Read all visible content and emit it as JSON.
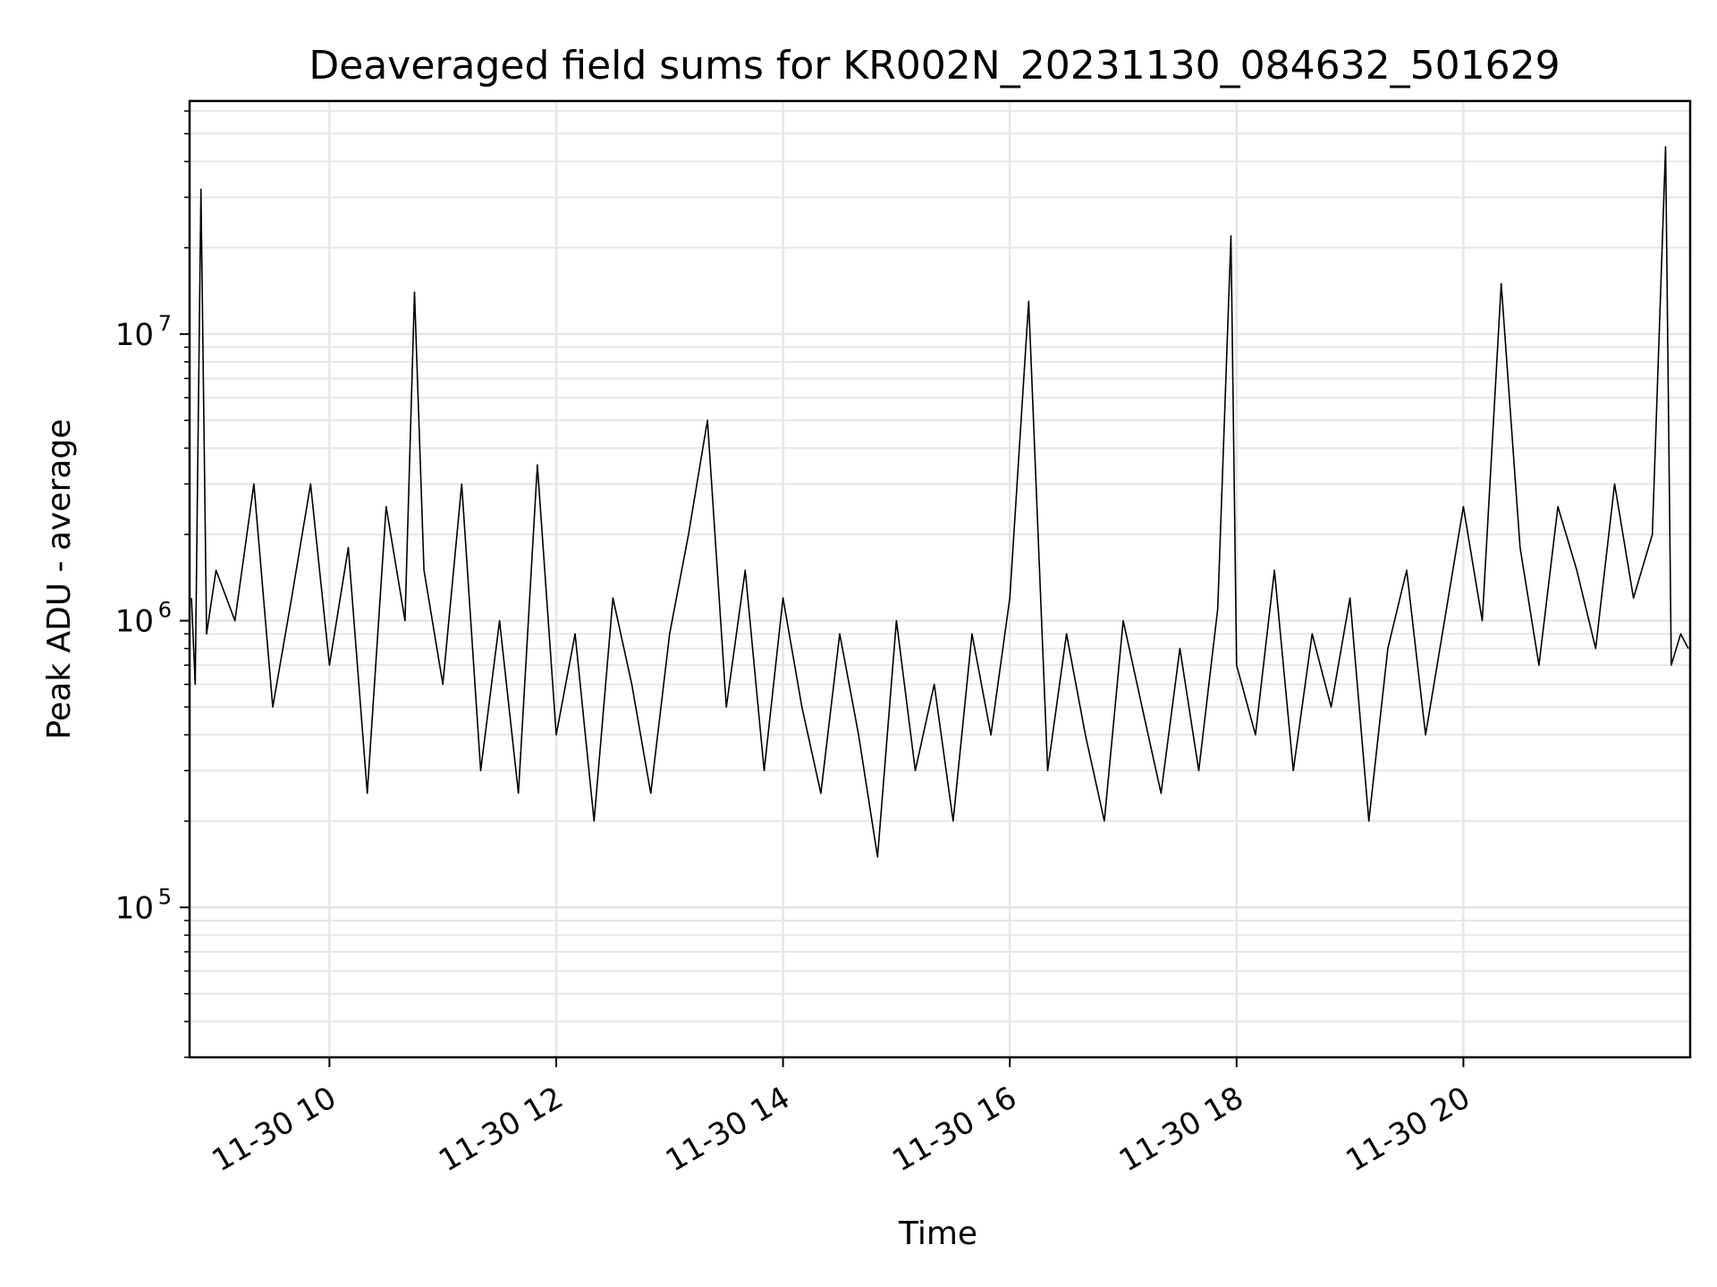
{
  "chart_data": {
    "type": "line",
    "title": "Deaveraged field sums for KR002N_20231130_084632_501629",
    "xlabel": "Time",
    "ylabel": "Peak ADU - average",
    "x_scale": "time",
    "y_scale": "log",
    "xlim": [
      "2023-11-30T08:46",
      "2023-11-30T22:00"
    ],
    "ylim": [
      30000,
      65000000
    ],
    "x_ticks": [
      {
        "t": "2023-11-30T10:00",
        "label": "11-30 10"
      },
      {
        "t": "2023-11-30T12:00",
        "label": "11-30 12"
      },
      {
        "t": "2023-11-30T14:00",
        "label": "11-30 14"
      },
      {
        "t": "2023-11-30T16:00",
        "label": "11-30 16"
      },
      {
        "t": "2023-11-30T18:00",
        "label": "11-30 18"
      },
      {
        "t": "2023-11-30T20:00",
        "label": "11-30 20"
      }
    ],
    "y_ticks": [
      {
        "value": 100000,
        "base": "10",
        "exp": "5"
      },
      {
        "value": 1000000,
        "base": "10",
        "exp": "6"
      },
      {
        "value": 10000000,
        "base": "10",
        "exp": "7"
      }
    ],
    "grid": true,
    "line_color": "#000000",
    "grid_color": "#e6e6e6",
    "series": [
      {
        "x": [
          "2023-11-30T08:47",
          "2023-11-30T08:49",
          "2023-11-30T08:52",
          "2023-11-30T08:55",
          "2023-11-30T09:00",
          "2023-11-30T09:10",
          "2023-11-30T09:20",
          "2023-11-30T09:30",
          "2023-11-30T09:40",
          "2023-11-30T09:50",
          "2023-11-30T10:00",
          "2023-11-30T10:10",
          "2023-11-30T10:20",
          "2023-11-30T10:30",
          "2023-11-30T10:40",
          "2023-11-30T10:45",
          "2023-11-30T10:50",
          "2023-11-30T11:00",
          "2023-11-30T11:10",
          "2023-11-30T11:20",
          "2023-11-30T11:30",
          "2023-11-30T11:40",
          "2023-11-30T11:50",
          "2023-11-30T12:00",
          "2023-11-30T12:10",
          "2023-11-30T12:20",
          "2023-11-30T12:30",
          "2023-11-30T12:40",
          "2023-11-30T12:50",
          "2023-11-30T13:00",
          "2023-11-30T13:10",
          "2023-11-30T13:20",
          "2023-11-30T13:30",
          "2023-11-30T13:40",
          "2023-11-30T13:50",
          "2023-11-30T14:00",
          "2023-11-30T14:10",
          "2023-11-30T14:20",
          "2023-11-30T14:30",
          "2023-11-30T14:40",
          "2023-11-30T14:50",
          "2023-11-30T15:00",
          "2023-11-30T15:10",
          "2023-11-30T15:20",
          "2023-11-30T15:30",
          "2023-11-30T15:40",
          "2023-11-30T15:50",
          "2023-11-30T16:00",
          "2023-11-30T16:10",
          "2023-11-30T16:20",
          "2023-11-30T16:30",
          "2023-11-30T16:40",
          "2023-11-30T16:50",
          "2023-11-30T17:00",
          "2023-11-30T17:10",
          "2023-11-30T17:20",
          "2023-11-30T17:30",
          "2023-11-30T17:40",
          "2023-11-30T17:50",
          "2023-11-30T17:57",
          "2023-11-30T18:00",
          "2023-11-30T18:10",
          "2023-11-30T18:20",
          "2023-11-30T18:30",
          "2023-11-30T18:40",
          "2023-11-30T18:50",
          "2023-11-30T19:00",
          "2023-11-30T19:10",
          "2023-11-30T19:20",
          "2023-11-30T19:30",
          "2023-11-30T19:40",
          "2023-11-30T19:50",
          "2023-11-30T20:00",
          "2023-11-30T20:10",
          "2023-11-30T20:20",
          "2023-11-30T20:30",
          "2023-11-30T20:40",
          "2023-11-30T20:50",
          "2023-11-30T21:00",
          "2023-11-30T21:10",
          "2023-11-30T21:20",
          "2023-11-30T21:30",
          "2023-11-30T21:40",
          "2023-11-30T21:47",
          "2023-11-30T21:50",
          "2023-11-30T21:55",
          "2023-11-30T21:59"
        ],
        "y": [
          1200000,
          600000,
          32000000,
          900000,
          1500000,
          1000000,
          3000000,
          500000,
          1200000,
          3000000,
          700000,
          1800000,
          250000,
          2500000,
          1000000,
          14000000,
          1500000,
          600000,
          3000000,
          300000,
          1000000,
          250000,
          3500000,
          400000,
          900000,
          200000,
          1200000,
          600000,
          250000,
          900000,
          2000000,
          5000000,
          500000,
          1500000,
          300000,
          1200000,
          500000,
          250000,
          900000,
          400000,
          150000,
          1000000,
          300000,
          600000,
          200000,
          900000,
          400000,
          1200000,
          13000000,
          300000,
          900000,
          400000,
          200000,
          1000000,
          500000,
          250000,
          800000,
          300000,
          1100000,
          22000000,
          700000,
          400000,
          1500000,
          300000,
          900000,
          500000,
          1200000,
          200000,
          800000,
          1500000,
          400000,
          1000000,
          2500000,
          1000000,
          15000000,
          1800000,
          700000,
          2500000,
          1500000,
          800000,
          3000000,
          1200000,
          2000000,
          45000000,
          700000,
          900000,
          800000
        ]
      }
    ]
  }
}
